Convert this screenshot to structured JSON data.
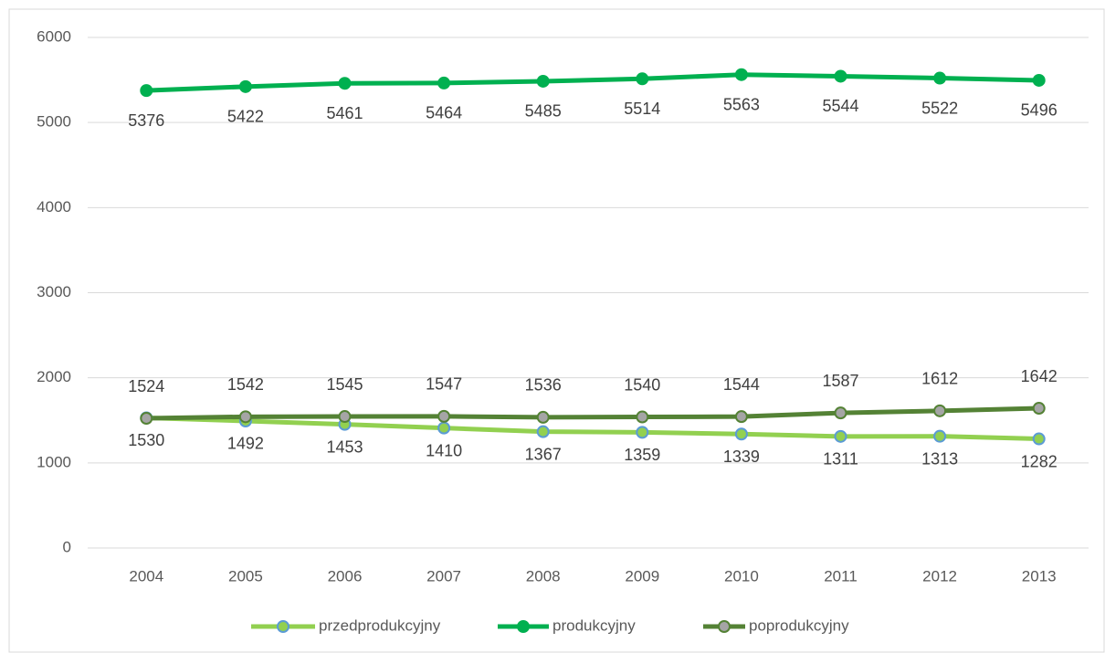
{
  "chart_data": {
    "type": "line",
    "categories": [
      "2004",
      "2005",
      "2006",
      "2007",
      "2008",
      "2009",
      "2010",
      "2011",
      "2012",
      "2013"
    ],
    "series": [
      {
        "name": "przedprodukcyjny",
        "color": "#92d050",
        "marker_color": "#92d050",
        "marker_edge": "#5b9bd5",
        "values": [
          1530,
          1492,
          1453,
          1410,
          1367,
          1359,
          1339,
          1311,
          1313,
          1282
        ]
      },
      {
        "name": "produkcyjny",
        "color": "#00b050",
        "marker_color": "#00b050",
        "marker_edge": "#00b050",
        "values": [
          5376,
          5422,
          5461,
          5464,
          5485,
          5514,
          5563,
          5544,
          5522,
          5496
        ]
      },
      {
        "name": "poprodukcyjny",
        "color": "#548235",
        "marker_color": "#a5a5a5",
        "marker_edge": "#548235",
        "values": [
          1524,
          1542,
          1545,
          1547,
          1536,
          1540,
          1544,
          1587,
          1612,
          1642
        ]
      }
    ],
    "ylim": [
      0,
      6000
    ],
    "yticks": [
      0,
      1000,
      2000,
      3000,
      4000,
      5000,
      6000
    ],
    "grid": true,
    "legend": "bottom"
  }
}
